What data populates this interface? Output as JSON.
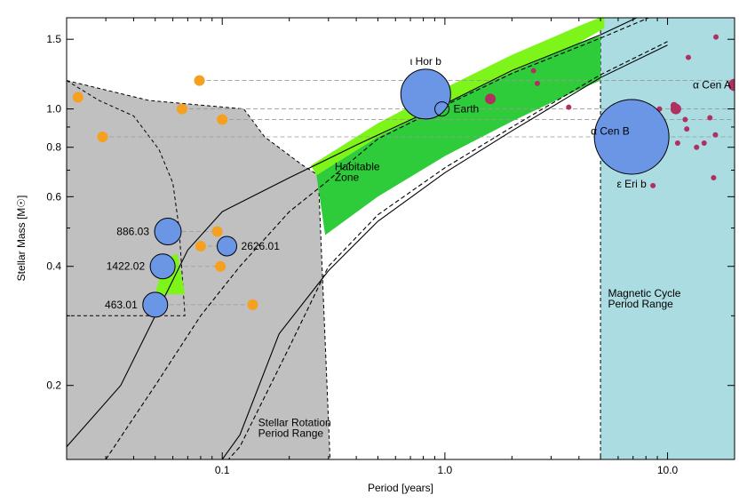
{
  "chart_data": {
    "type": "scatter",
    "xlabel": "Period [years]",
    "ylabel": "Stellar Mass [M☉]",
    "xscale": "log",
    "yscale": "log",
    "xlim": [
      0.02,
      20
    ],
    "ylim": [
      0.13,
      1.7
    ],
    "x_ticks": [
      {
        "v": 0.1,
        "label": "0.1"
      },
      {
        "v": 1,
        "label": "1.0"
      },
      {
        "v": 10,
        "label": "10.0"
      }
    ],
    "y_ticks": [
      {
        "v": 0.2,
        "label": "0.2"
      },
      {
        "v": 0.4,
        "label": "0.4"
      },
      {
        "v": 0.6,
        "label": "0.6"
      },
      {
        "v": 0.8,
        "label": "0.8"
      },
      {
        "v": 1.0,
        "label": "1.0"
      },
      {
        "v": 1.5,
        "label": "1.5"
      }
    ],
    "region_labels": {
      "habitable": [
        "Habitable",
        "Zone"
      ],
      "rotation": [
        "Stellar Rotation",
        "Period Range"
      ],
      "magnetic": [
        "Magnetic Cycle",
        "Period Range"
      ]
    },
    "colors": {
      "rotation_region": "#c0c0c0",
      "magnetic_region": "#aadce1",
      "hz_conservative": "#2ecc3a",
      "hz_optimistic": "#7df51a",
      "planet": "#6b95e5",
      "orange_star": "#f5a01e",
      "magenta_star": "#b03060"
    },
    "rotation_region_polygon": [
      [
        0.02,
        1.18
      ],
      [
        0.047,
        1.05
      ],
      [
        0.125,
        1.0
      ],
      [
        0.155,
        0.85
      ],
      [
        0.23,
        0.72
      ],
      [
        0.27,
        0.68
      ],
      [
        0.305,
        0.13
      ],
      [
        0.02,
        0.13
      ]
    ],
    "rotation_region_dashed_edge": [
      [
        0.02,
        1.18
      ],
      [
        0.028,
        1.05
      ],
      [
        0.04,
        0.96
      ],
      [
        0.052,
        0.79
      ],
      [
        0.06,
        0.65
      ],
      [
        0.064,
        0.5
      ],
      [
        0.068,
        0.3
      ],
      [
        0.02,
        0.3
      ]
    ],
    "magnetic_region_x": [
      5.0,
      20
    ],
    "hz_optimistic": {
      "upper": [
        [
          0.25,
          0.72
        ],
        [
          0.5,
          0.92
        ],
        [
          1.0,
          1.13
        ],
        [
          2.0,
          1.37
        ],
        [
          4.0,
          1.62
        ],
        [
          5.2,
          1.72
        ]
      ],
      "lower": [
        [
          0.265,
          0.68
        ],
        [
          0.5,
          0.85
        ],
        [
          1.0,
          1.03
        ],
        [
          2.0,
          1.24
        ],
        [
          4.0,
          1.47
        ],
        [
          5.2,
          1.6
        ]
      ]
    },
    "hz_conservative": {
      "upper": [
        [
          0.265,
          0.68
        ],
        [
          0.5,
          0.85
        ],
        [
          1.0,
          1.03
        ],
        [
          2.0,
          1.24
        ],
        [
          4.0,
          1.47
        ],
        [
          5.0,
          1.53
        ]
      ],
      "lower": [
        [
          0.29,
          0.48
        ],
        [
          0.5,
          0.6
        ],
        [
          1.0,
          0.76
        ],
        [
          2.0,
          0.93
        ],
        [
          4.0,
          1.12
        ],
        [
          5.0,
          1.18
        ]
      ]
    },
    "hz_small": {
      "upper": [
        [
          0.055,
          0.42
        ],
        [
          0.063,
          0.43
        ],
        [
          0.068,
          0.34
        ]
      ],
      "lower": [
        [
          0.05,
          0.34
        ],
        [
          0.068,
          0.34
        ]
      ]
    },
    "curves": [
      {
        "style": "solid",
        "points": [
          [
            0.02,
            0.14
          ],
          [
            0.035,
            0.2
          ],
          [
            0.05,
            0.3
          ],
          [
            0.07,
            0.44
          ],
          [
            0.1,
            0.55
          ],
          [
            0.2,
            0.67
          ],
          [
            0.4,
            0.81
          ],
          [
            1.0,
            1.03
          ],
          [
            2.0,
            1.25
          ],
          [
            5.0,
            1.54
          ],
          [
            10,
            1.85
          ]
        ]
      },
      {
        "style": "dashed",
        "points": [
          [
            0.03,
            0.13
          ],
          [
            0.05,
            0.2
          ],
          [
            0.08,
            0.3
          ],
          [
            0.12,
            0.4
          ],
          [
            0.2,
            0.55
          ],
          [
            0.29,
            0.65
          ],
          [
            0.5,
            0.84
          ],
          [
            1.0,
            1.02
          ],
          [
            2.0,
            1.23
          ],
          [
            5.0,
            1.51
          ],
          [
            10,
            1.78
          ]
        ]
      },
      {
        "style": "solid",
        "points": [
          [
            0.1,
            0.13
          ],
          [
            0.12,
            0.15
          ],
          [
            0.18,
            0.27
          ],
          [
            0.3,
            0.39
          ],
          [
            0.5,
            0.52
          ],
          [
            1.0,
            0.69
          ],
          [
            2.0,
            0.88
          ],
          [
            5.0,
            1.2
          ],
          [
            10,
            1.45
          ]
        ]
      },
      {
        "style": "dashed",
        "points": [
          [
            0.1,
            0.125
          ],
          [
            0.12,
            0.14
          ],
          [
            0.2,
            0.25
          ],
          [
            0.3,
            0.4
          ],
          [
            0.5,
            0.54
          ],
          [
            1.0,
            0.71
          ],
          [
            2.0,
            0.9
          ],
          [
            5.0,
            1.22
          ],
          [
            10,
            1.48
          ]
        ]
      }
    ],
    "planets": [
      {
        "name": "886.03",
        "x": 0.057,
        "y": 0.49,
        "r": 15,
        "label_side": "left"
      },
      {
        "name": "1422.02",
        "x": 0.054,
        "y": 0.4,
        "r": 14,
        "label_side": "left"
      },
      {
        "name": "463.01",
        "x": 0.05,
        "y": 0.32,
        "r": 14,
        "label_side": "left"
      },
      {
        "name": "2626.01",
        "x": 0.105,
        "y": 0.45,
        "r": 11,
        "label_side": "right"
      },
      {
        "name": "ι Hor b",
        "x": 0.82,
        "y": 1.09,
        "r": 28,
        "label_side": "top"
      },
      {
        "name": "Earth",
        "x": 0.97,
        "y": 1.0,
        "r": 8,
        "label_side": "right"
      },
      {
        "name": "ε Eri b",
        "x": 6.9,
        "y": 0.85,
        "r": 42,
        "label_side": "below"
      }
    ],
    "orange_stars": [
      {
        "x": 0.0225,
        "y": 1.07,
        "r": 6
      },
      {
        "x": 0.029,
        "y": 0.85,
        "r": 6
      },
      {
        "x": 0.079,
        "y": 1.18,
        "r": 6
      },
      {
        "x": 0.066,
        "y": 1.0,
        "r": 6
      },
      {
        "x": 0.1,
        "y": 0.94,
        "r": 6
      },
      {
        "x": 0.095,
        "y": 0.49,
        "r": 6
      },
      {
        "x": 0.08,
        "y": 0.45,
        "r": 6
      },
      {
        "x": 0.098,
        "y": 0.4,
        "r": 6
      },
      {
        "x": 0.137,
        "y": 0.32,
        "r": 6
      }
    ],
    "magenta_stars": [
      {
        "x": 1.6,
        "y": 1.06,
        "r": 6
      },
      {
        "x": 2.5,
        "y": 1.25,
        "r": 3
      },
      {
        "x": 2.6,
        "y": 1.16,
        "r": 3
      },
      {
        "x": 3.6,
        "y": 1.01,
        "r": 3
      },
      {
        "x": 5.0,
        "y": 0.85,
        "r": 6
      },
      {
        "x": 8.1,
        "y": 0.93,
        "r": 6
      },
      {
        "x": 10.9,
        "y": 1.0,
        "r": 6
      },
      {
        "x": 10.7,
        "y": 1.02,
        "r": 4
      },
      {
        "x": 12.4,
        "y": 1.35,
        "r": 3
      },
      {
        "x": 16.5,
        "y": 1.52,
        "r": 3
      },
      {
        "x": 20,
        "y": 1.15,
        "r": 7
      },
      {
        "x": 15.5,
        "y": 0.95,
        "r": 3
      },
      {
        "x": 12.0,
        "y": 0.94,
        "r": 3
      },
      {
        "x": 12.2,
        "y": 0.89,
        "r": 3
      },
      {
        "x": 13.5,
        "y": 0.8,
        "r": 3
      },
      {
        "x": 14.6,
        "y": 0.82,
        "r": 3
      },
      {
        "x": 16.4,
        "y": 0.86,
        "r": 3
      },
      {
        "x": 8.6,
        "y": 0.64,
        "r": 3
      },
      {
        "x": 7.3,
        "y": 0.71,
        "r": 3
      },
      {
        "x": 16.1,
        "y": 0.67,
        "r": 3
      },
      {
        "x": 9.2,
        "y": 1.0,
        "r": 3
      },
      {
        "x": 11.1,
        "y": 0.82,
        "r": 3
      }
    ],
    "star_labels": [
      {
        "name": "α Cen A",
        "x": 20,
        "y": 1.15
      },
      {
        "name": "α Cen B",
        "x": 7.0,
        "y": 0.88
      }
    ],
    "reference_lines": [
      {
        "y": 1.18,
        "x0": 0.079,
        "x1": 20
      },
      {
        "y": 1.0,
        "x0": 0.066,
        "x1": 20
      },
      {
        "y": 0.94,
        "x0": 0.1,
        "x1": 20
      },
      {
        "y": 0.85,
        "x0": 0.029,
        "x1": 20
      },
      {
        "y": 0.49,
        "x0": 0.057,
        "x1": 0.095
      },
      {
        "y": 0.45,
        "x0": 0.08,
        "x1": 0.105
      },
      {
        "y": 0.4,
        "x0": 0.054,
        "x1": 0.098
      },
      {
        "y": 0.32,
        "x0": 0.05,
        "x1": 0.137
      }
    ]
  }
}
